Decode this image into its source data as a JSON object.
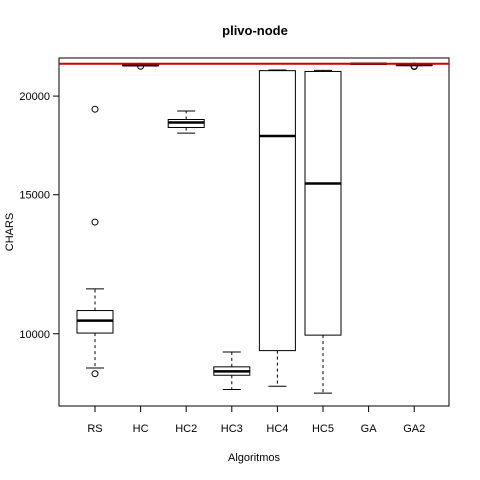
{
  "chart_data": {
    "type": "box",
    "title": "plivo-node",
    "xlabel": "Algoritmos",
    "ylabel": "CHARS",
    "y_scale": "log",
    "ylim": [
      8100,
      22350
    ],
    "yticks": [
      10000,
      15000,
      20000
    ],
    "grid": false,
    "reference_line": {
      "value": 21980,
      "color": "#cc0000"
    },
    "categories": [
      "RS",
      "HC",
      "HC2",
      "HC3",
      "HC4",
      "HC5",
      "GA",
      "GA2"
    ],
    "boxes": [
      {
        "name": "RS",
        "whisker_low": 9050,
        "q1": 10020,
        "median": 10390,
        "q3": 10700,
        "whisker_high": 11400,
        "outliers": [
          8900,
          13850,
          19250
        ]
      },
      {
        "name": "HC",
        "whisker_low": 21850,
        "q1": 21860,
        "median": 21880,
        "q3": 21900,
        "whisker_high": 21920,
        "outliers": [
          21820
        ]
      },
      {
        "name": "HC2",
        "whisker_low": 17950,
        "q1": 18250,
        "median": 18520,
        "q3": 18680,
        "whisker_high": 19150,
        "outliers": []
      },
      {
        "name": "HC3",
        "whisker_low": 8500,
        "q1": 8860,
        "median": 8960,
        "q3": 9080,
        "whisker_high": 9480,
        "outliers": []
      },
      {
        "name": "HC4",
        "whisker_low": 8580,
        "q1": 9520,
        "median": 17800,
        "q3": 21540,
        "whisker_high": 21580,
        "outliers": []
      },
      {
        "name": "HC5",
        "whisker_low": 8410,
        "q1": 9960,
        "median": 15500,
        "q3": 21490,
        "whisker_high": 21560,
        "outliers": []
      },
      {
        "name": "GA",
        "whisker_low": 21970,
        "q1": 21975,
        "median": 21980,
        "q3": 21985,
        "whisker_high": 21990,
        "outliers": []
      },
      {
        "name": "GA2",
        "whisker_low": 21860,
        "q1": 21880,
        "median": 21900,
        "q3": 21920,
        "whisker_high": 21940,
        "outliers": [
          21800,
          21830
        ]
      }
    ]
  }
}
